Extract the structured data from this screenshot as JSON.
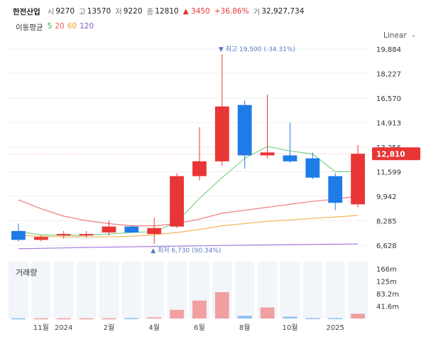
{
  "header": {
    "name": "한전산업",
    "open_label": "시",
    "open": "9270",
    "high_label": "고",
    "high": "13570",
    "low_label": "저",
    "low": "9220",
    "close_label": "종",
    "close": "12810",
    "change": "▲ 3450",
    "change_pct": "+36.86%",
    "volume_label": "거",
    "volume": "32,927,734"
  },
  "ma_legend": {
    "title": "이동평균",
    "items": [
      {
        "label": "5",
        "color": "#2fb34a"
      },
      {
        "label": "20",
        "color": "#e85b5b"
      },
      {
        "label": "60",
        "color": "#f0a020"
      },
      {
        "label": "120",
        "color": "#8a5cd0"
      }
    ]
  },
  "scale_mode": "Linear",
  "colors": {
    "up": "#e83535",
    "down": "#1e7be8",
    "vol_up": "#f0a0a0",
    "vol_down": "#8fbff0",
    "current_badge": "#e83535"
  },
  "chart_data": {
    "type": "candlestick",
    "y_ticks": [
      "19,884",
      "18,227",
      "16,570",
      "14,913",
      "13,256",
      "11,599",
      "9,942",
      "8,285",
      "6,628"
    ],
    "y_tick_values": [
      19884,
      18227,
      16570,
      14913,
      13256,
      11599,
      9942,
      8285,
      6628
    ],
    "ylim": [
      6300,
      20400
    ],
    "x_labels": [
      {
        "label": "11월",
        "at": 1.5
      },
      {
        "label": "2024",
        "at": 2.5
      },
      {
        "label": "2월",
        "at": 4.5
      },
      {
        "label": "4월",
        "at": 6.5
      },
      {
        "label": "6월",
        "at": 8.5
      },
      {
        "label": "8월",
        "at": 10.5
      },
      {
        "label": "10월",
        "at": 12.5
      },
      {
        "label": "2025",
        "at": 14.5
      }
    ],
    "candles": [
      {
        "o": 7600,
        "h": 8100,
        "l": 6900,
        "c": 7000
      },
      {
        "o": 7000,
        "h": 7300,
        "l": 6900,
        "c": 7200
      },
      {
        "o": 7300,
        "h": 7600,
        "l": 7100,
        "c": 7400
      },
      {
        "o": 7300,
        "h": 7600,
        "l": 7150,
        "c": 7400
      },
      {
        "o": 7500,
        "h": 8300,
        "l": 7300,
        "c": 7900
      },
      {
        "o": 7900,
        "h": 8000,
        "l": 7500,
        "c": 7500
      },
      {
        "o": 7400,
        "h": 8500,
        "l": 6730,
        "c": 7800
      },
      {
        "o": 7900,
        "h": 11500,
        "l": 7800,
        "c": 11300
      },
      {
        "o": 11300,
        "h": 14600,
        "l": 11000,
        "c": 12300
      },
      {
        "o": 12300,
        "h": 19500,
        "l": 12000,
        "c": 16000
      },
      {
        "o": 16100,
        "h": 16400,
        "l": 11800,
        "c": 12700
      },
      {
        "o": 12700,
        "h": 16800,
        "l": 12500,
        "c": 12900
      },
      {
        "o": 12700,
        "h": 14900,
        "l": 12200,
        "c": 12300
      },
      {
        "o": 12500,
        "h": 12900,
        "l": 11100,
        "c": 11200
      },
      {
        "o": 11300,
        "h": 11500,
        "l": 9000,
        "c": 9500
      },
      {
        "o": 9400,
        "h": 13400,
        "l": 9200,
        "c": 12810
      }
    ],
    "volumes": [
      0.7,
      0.7,
      0.7,
      0.7,
      0.7,
      1.2,
      4.0,
      29.0,
      60.0,
      88.0,
      9.0,
      37.0,
      6.0,
      1.5,
      1.2,
      16.0
    ],
    "volume_unit": "m",
    "volume_max": 190,
    "volume_ticks": [
      "166m",
      "125m",
      "83.2m",
      "41.6m"
    ],
    "volume_tick_values": [
      166,
      125,
      83.2,
      41.6
    ],
    "ma5": [
      7550,
      7350,
      7300,
      7300,
      7400,
      7500,
      7550,
      8200,
      9800,
      11200,
      12500,
      13300,
      13000,
      12800,
      11600,
      11600
    ],
    "ma20": [
      9700,
      9100,
      8600,
      8300,
      8100,
      7950,
      7950,
      8100,
      8400,
      8800,
      9000,
      9200,
      9400,
      9600,
      9750,
      9950
    ],
    "ma60": [
      7300,
      7250,
      7200,
      7200,
      7200,
      7250,
      7350,
      7500,
      7700,
      7950,
      8100,
      8250,
      8350,
      8450,
      8550,
      8650
    ],
    "ma120": [
      6400,
      6430,
      6460,
      6490,
      6510,
      6530,
      6560,
      6580,
      6600,
      6620,
      6640,
      6660,
      6680,
      6700,
      6710,
      6720
    ],
    "max_annotation": {
      "text": "▼ 최고 19,500 (-34.31%)",
      "index": 9
    },
    "min_annotation": {
      "text": "▲ 최저 6,730 (90.34%)",
      "index": 6
    },
    "current_price": {
      "label": "12,810",
      "value": 12810
    },
    "volume_title": "거래량"
  }
}
